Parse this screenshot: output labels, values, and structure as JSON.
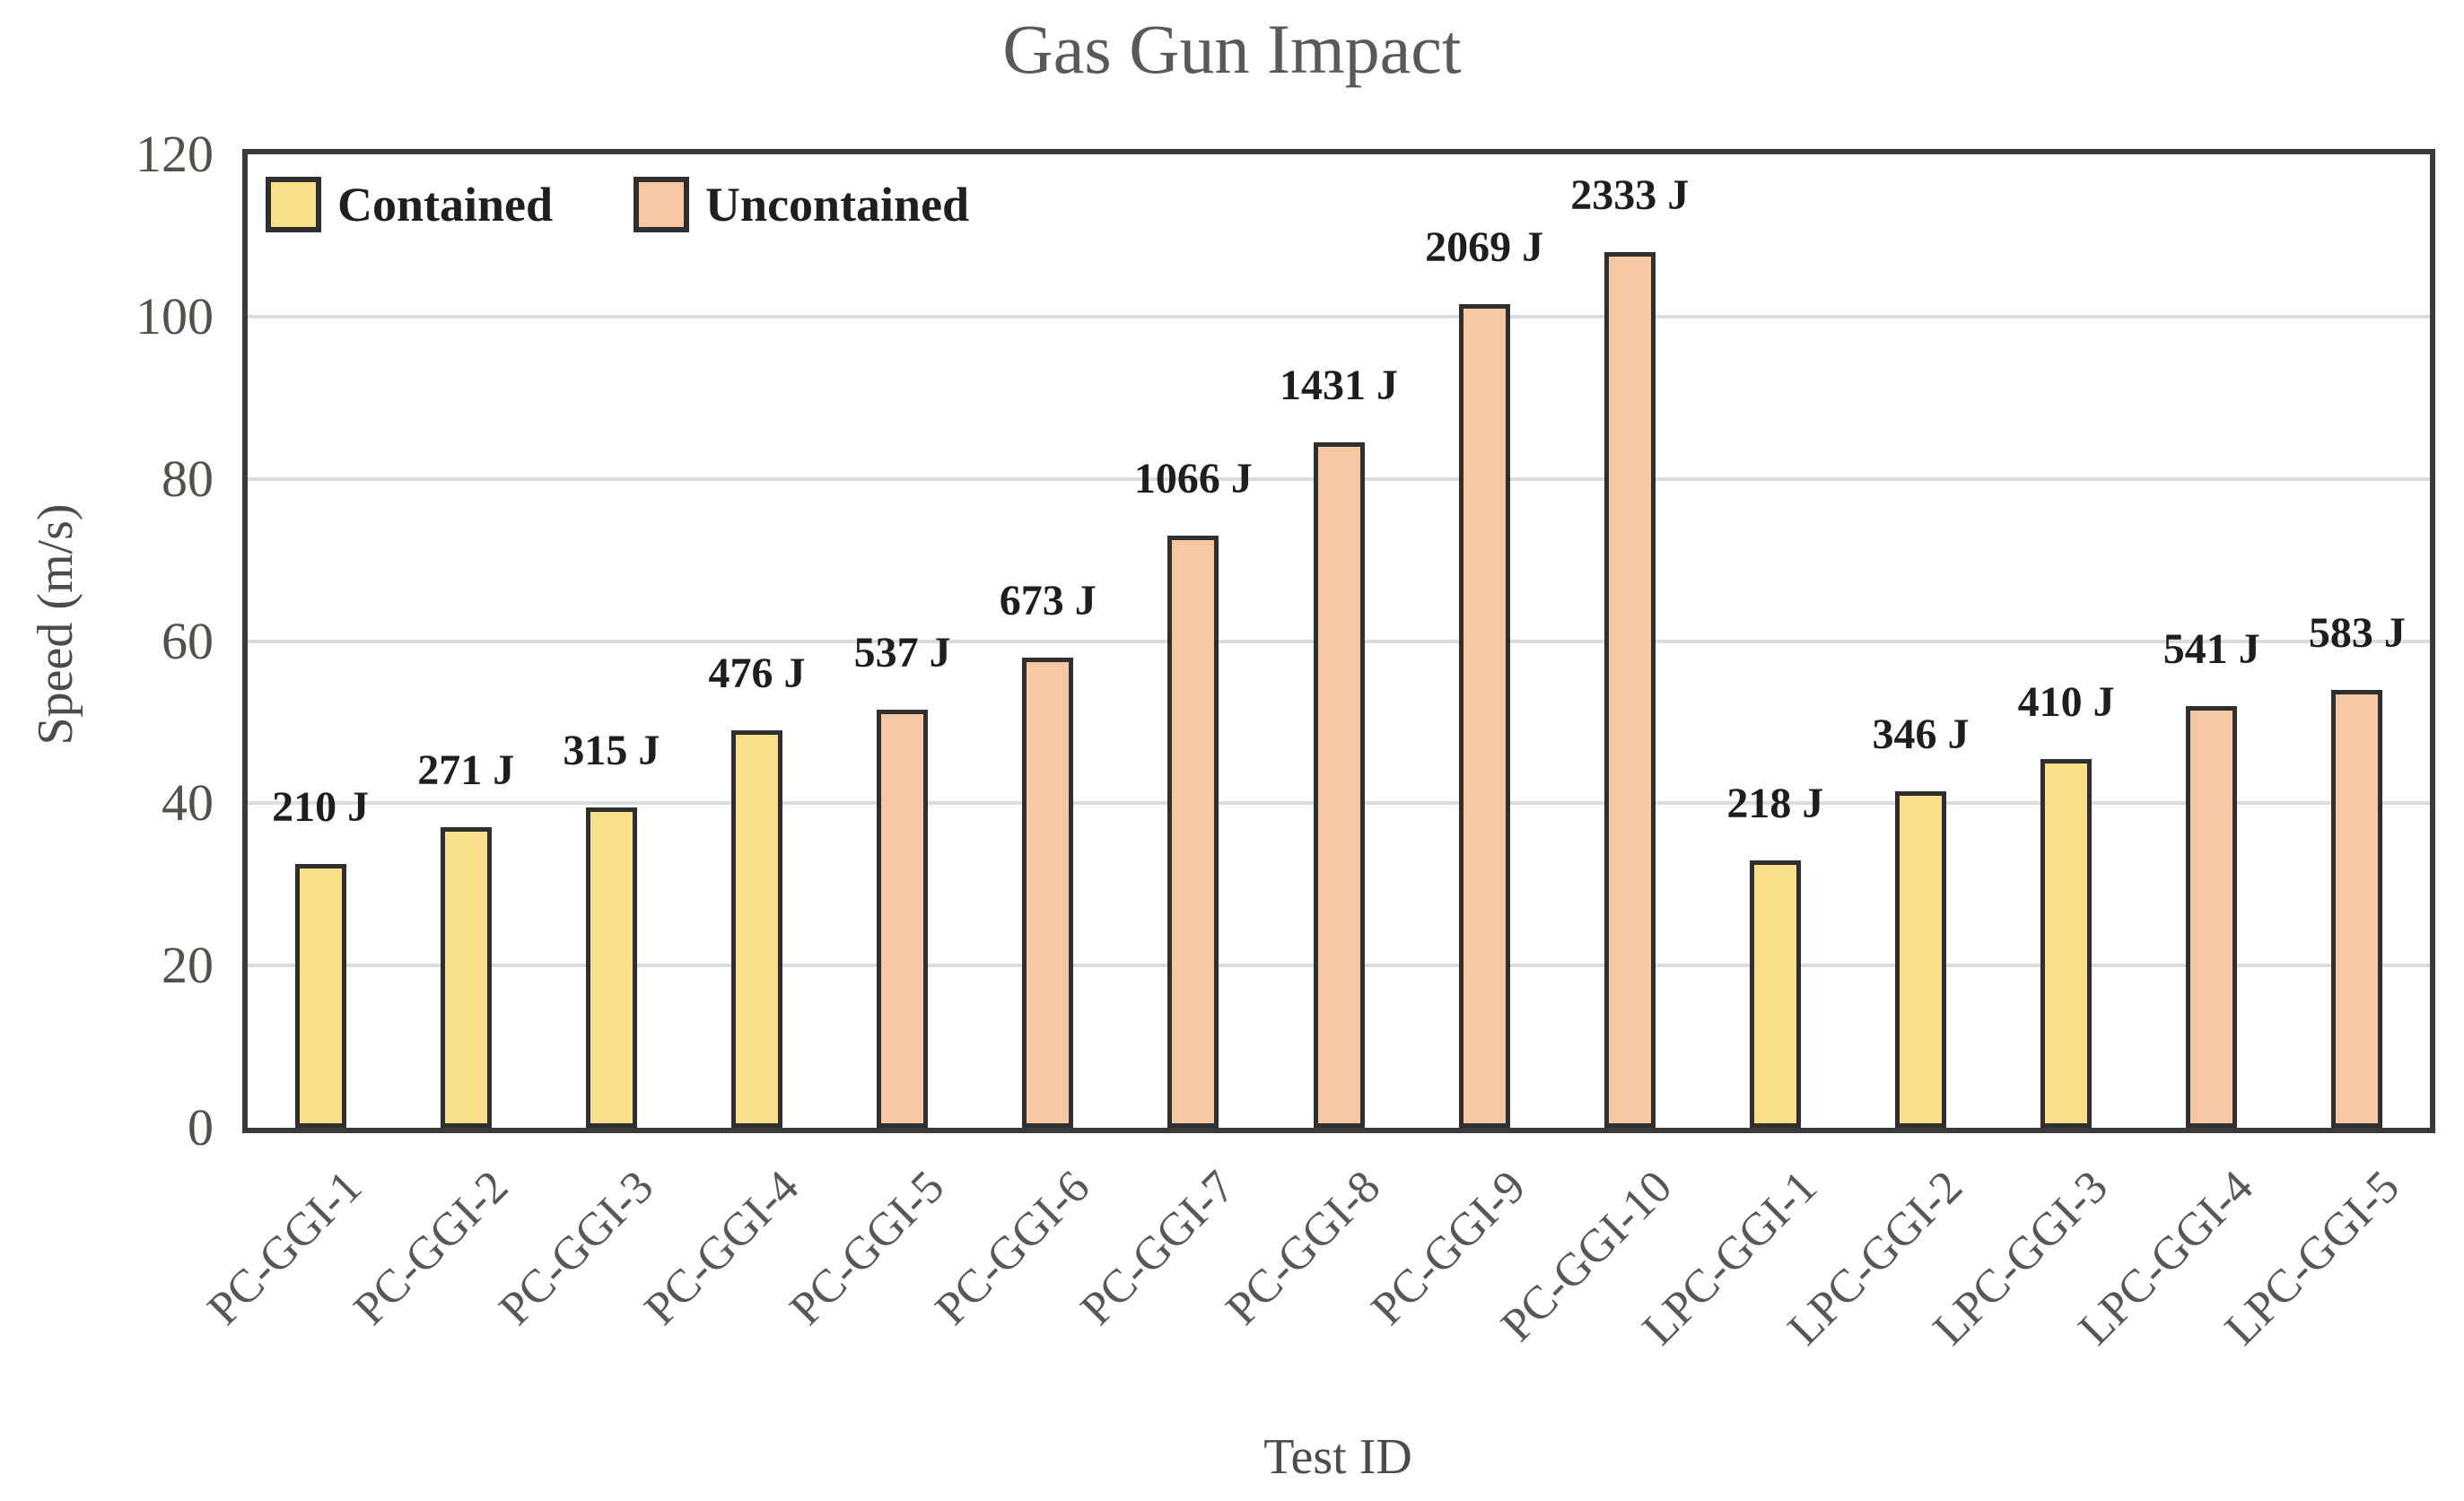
{
  "title": "Gas Gun Impact",
  "axes": {
    "y_title": "Speed (m/s)",
    "x_title": "Test ID"
  },
  "legend": {
    "items": [
      {
        "label": "Contained",
        "color": "#FAE08D"
      },
      {
        "label": "Uncontained",
        "color": "#F6C7A3"
      }
    ]
  },
  "colors": {
    "contained_fill": "#FAE08D",
    "uncontained_fill": "#F6C7A3",
    "bar_border": "#2f2f2f",
    "plot_border": "#3a3a3a",
    "gridline": "#dcdcdc",
    "title_text": "#595959",
    "tick_text": "#555049",
    "data_label_text": "#1e1e1e"
  },
  "chart_data": {
    "type": "bar",
    "title": "Gas Gun Impact",
    "xlabel": "Test ID",
    "ylabel": "Speed (m/s)",
    "ylim": [
      0,
      120
    ],
    "yticks": [
      0,
      20,
      40,
      60,
      80,
      100,
      120
    ],
    "grid": "horizontal",
    "legend_position": "top-left-inside",
    "series": [
      {
        "name": "Contained",
        "color": "#FAE08D"
      },
      {
        "name": "Uncontained",
        "color": "#F6C7A3"
      }
    ],
    "categories": [
      "PC-GGI-1",
      "PC-GGI-2",
      "PC-GGI-3",
      "PC-GGI-4",
      "PC-GGI-5",
      "PC-GGI-6",
      "PC-GGI-7",
      "PC-GGI-8",
      "PC-GGI-9",
      "PC-GGI-10",
      "LPC-GGI-1",
      "LPC-GGI-2",
      "LPC-GGI-3",
      "LPC-GGI-4",
      "LPC-GGI-5"
    ],
    "bars": [
      {
        "category": "PC-GGI-1",
        "series": "Contained",
        "speed_m_s": 32.5,
        "energy_label": "210 J"
      },
      {
        "category": "PC-GGI-2",
        "series": "Contained",
        "speed_m_s": 37,
        "energy_label": "271 J"
      },
      {
        "category": "PC-GGI-3",
        "series": "Contained",
        "speed_m_s": 39.5,
        "energy_label": "315 J"
      },
      {
        "category": "PC-GGI-4",
        "series": "Contained",
        "speed_m_s": 49,
        "energy_label": "476 J"
      },
      {
        "category": "PC-GGI-5",
        "series": "Uncontained",
        "speed_m_s": 51.5,
        "energy_label": "537 J"
      },
      {
        "category": "PC-GGI-6",
        "series": "Uncontained",
        "speed_m_s": 58,
        "energy_label": "673 J"
      },
      {
        "category": "PC-GGI-7",
        "series": "Uncontained",
        "speed_m_s": 73,
        "energy_label": "1066 J"
      },
      {
        "category": "PC-GGI-8",
        "series": "Uncontained",
        "speed_m_s": 84.5,
        "energy_label": "1431 J"
      },
      {
        "category": "PC-GGI-9",
        "series": "Uncontained",
        "speed_m_s": 101.5,
        "energy_label": "2069 J"
      },
      {
        "category": "PC-GGI-10",
        "series": "Uncontained",
        "speed_m_s": 108,
        "energy_label": "2333 J"
      },
      {
        "category": "LPC-GGI-1",
        "series": "Contained",
        "speed_m_s": 33,
        "energy_label": "218 J"
      },
      {
        "category": "LPC-GGI-2",
        "series": "Contained",
        "speed_m_s": 41.5,
        "energy_label": "346 J"
      },
      {
        "category": "LPC-GGI-3",
        "series": "Contained",
        "speed_m_s": 45.5,
        "energy_label": "410 J"
      },
      {
        "category": "LPC-GGI-4",
        "series": "Uncontained",
        "speed_m_s": 52,
        "energy_label": "541 J"
      },
      {
        "category": "LPC-GGI-5",
        "series": "Uncontained",
        "speed_m_s": 54,
        "energy_label": "583 J"
      }
    ]
  }
}
